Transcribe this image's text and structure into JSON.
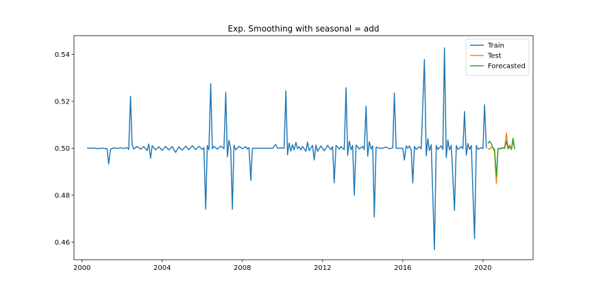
{
  "chart_data": {
    "type": "line",
    "title": "Exp. Smoothing with seasonal = add",
    "xlabel": "",
    "ylabel": "",
    "xlim": [
      1999.6,
      2022.5
    ],
    "ylim": [
      0.4525,
      0.548
    ],
    "x_ticks": [
      2000,
      2004,
      2008,
      2012,
      2016,
      2020
    ],
    "x_tick_labels": [
      "2000",
      "2004",
      "2008",
      "2012",
      "2016",
      "2020"
    ],
    "y_ticks": [
      0.46,
      0.48,
      0.5,
      0.52,
      0.54
    ],
    "y_tick_labels": [
      "0.46",
      "0.48",
      "0.50",
      "0.52",
      "0.54"
    ],
    "grid": false,
    "legend_position": "upper right",
    "series": [
      {
        "name": "Train",
        "color": "#1f77b4",
        "points": [
          [
            2000.25,
            0.5
          ],
          [
            2000.42,
            0.5
          ],
          [
            2000.58,
            0.5001
          ],
          [
            2000.75,
            0.4999
          ],
          [
            2000.92,
            0.5
          ],
          [
            2001.08,
            0.5
          ],
          [
            2001.25,
            0.4998
          ],
          [
            2001.33,
            0.4933
          ],
          [
            2001.42,
            0.4995
          ],
          [
            2001.58,
            0.5002
          ],
          [
            2001.75,
            0.4999
          ],
          [
            2001.92,
            0.5002
          ],
          [
            2002.08,
            0.4999
          ],
          [
            2002.25,
            0.5003
          ],
          [
            2002.33,
            0.4995
          ],
          [
            2002.42,
            0.5222
          ],
          [
            2002.5,
            0.5015
          ],
          [
            2002.58,
            0.4997
          ],
          [
            2002.75,
            0.5008
          ],
          [
            2002.92,
            0.4996
          ],
          [
            2003.08,
            0.5007
          ],
          [
            2003.25,
            0.499
          ],
          [
            2003.33,
            0.5018
          ],
          [
            2003.42,
            0.4958
          ],
          [
            2003.5,
            0.5011
          ],
          [
            2003.67,
            0.4993
          ],
          [
            2003.83,
            0.5006
          ],
          [
            2004.0,
            0.4991
          ],
          [
            2004.17,
            0.5008
          ],
          [
            2004.33,
            0.4993
          ],
          [
            2004.5,
            0.5007
          ],
          [
            2004.67,
            0.4982
          ],
          [
            2004.83,
            0.5006
          ],
          [
            2005.0,
            0.4992
          ],
          [
            2005.17,
            0.5009
          ],
          [
            2005.33,
            0.4994
          ],
          [
            2005.5,
            0.5011
          ],
          [
            2005.67,
            0.4994
          ],
          [
            2005.83,
            0.5008
          ],
          [
            2006.0,
            0.4995
          ],
          [
            2006.08,
            0.5003
          ],
          [
            2006.17,
            0.474
          ],
          [
            2006.25,
            0.5012
          ],
          [
            2006.33,
            0.4993
          ],
          [
            2006.42,
            0.5275
          ],
          [
            2006.5,
            0.4998
          ],
          [
            2006.58,
            0.5008
          ],
          [
            2006.75,
            0.4996
          ],
          [
            2006.92,
            0.5009
          ],
          [
            2007.08,
            0.4998
          ],
          [
            2007.17,
            0.5238
          ],
          [
            2007.25,
            0.4964
          ],
          [
            2007.33,
            0.5034
          ],
          [
            2007.42,
            0.4997
          ],
          [
            2007.5,
            0.474
          ],
          [
            2007.58,
            0.5013
          ],
          [
            2007.67,
            0.4993
          ],
          [
            2007.83,
            0.5008
          ],
          [
            2008.0,
            0.4998
          ],
          [
            2008.17,
            0.5007
          ],
          [
            2008.25,
            0.4996
          ],
          [
            2008.33,
            0.5003
          ],
          [
            2008.42,
            0.4863
          ],
          [
            2008.5,
            0.5
          ],
          [
            2008.67,
            0.5
          ],
          [
            2008.83,
            0.5
          ],
          [
            2009.0,
            0.5
          ],
          [
            2009.25,
            0.5
          ],
          [
            2009.5,
            0.5
          ],
          [
            2009.67,
            0.5016
          ],
          [
            2009.75,
            0.5
          ],
          [
            2009.92,
            0.5002
          ],
          [
            2010.08,
            0.5
          ],
          [
            2010.17,
            0.5245
          ],
          [
            2010.25,
            0.4972
          ],
          [
            2010.33,
            0.5022
          ],
          [
            2010.42,
            0.4988
          ],
          [
            2010.5,
            0.5015
          ],
          [
            2010.58,
            0.4993
          ],
          [
            2010.67,
            0.5025
          ],
          [
            2010.75,
            0.4998
          ],
          [
            2010.83,
            0.5006
          ],
          [
            2010.92,
            0.4993
          ],
          [
            2011.0,
            0.5008
          ],
          [
            2011.17,
            0.4987
          ],
          [
            2011.25,
            0.5026
          ],
          [
            2011.33,
            0.499
          ],
          [
            2011.5,
            0.5012
          ],
          [
            2011.58,
            0.495
          ],
          [
            2011.67,
            0.5014
          ],
          [
            2011.75,
            0.4987
          ],
          [
            2011.92,
            0.501
          ],
          [
            2012.08,
            0.4989
          ],
          [
            2012.25,
            0.5012
          ],
          [
            2012.42,
            0.4994
          ],
          [
            2012.5,
            0.5008
          ],
          [
            2012.58,
            0.4853
          ],
          [
            2012.67,
            0.5012
          ],
          [
            2012.83,
            0.4997
          ],
          [
            2012.92,
            0.5007
          ],
          [
            2013.08,
            0.4994
          ],
          [
            2013.17,
            0.5258
          ],
          [
            2013.25,
            0.497
          ],
          [
            2013.33,
            0.503
          ],
          [
            2013.42,
            0.4993
          ],
          [
            2013.5,
            0.5012
          ],
          [
            2013.58,
            0.48
          ],
          [
            2013.67,
            0.5014
          ],
          [
            2013.83,
            0.4997
          ],
          [
            2014.0,
            0.5008
          ],
          [
            2014.08,
            0.4994
          ],
          [
            2014.17,
            0.518
          ],
          [
            2014.25,
            0.4966
          ],
          [
            2014.33,
            0.5028
          ],
          [
            2014.42,
            0.4996
          ],
          [
            2014.5,
            0.501
          ],
          [
            2014.58,
            0.4707
          ],
          [
            2014.67,
            0.5005
          ],
          [
            2014.83,
            0.5
          ],
          [
            2015.0,
            0.5
          ],
          [
            2015.17,
            0.5005
          ],
          [
            2015.33,
            0.4998
          ],
          [
            2015.5,
            0.5002
          ],
          [
            2015.58,
            0.5235
          ],
          [
            2015.67,
            0.5
          ],
          [
            2015.83,
            0.5
          ],
          [
            2016.0,
            0.5
          ],
          [
            2016.08,
            0.495
          ],
          [
            2016.17,
            0.501
          ],
          [
            2016.25,
            0.5
          ],
          [
            2016.33,
            0.501
          ],
          [
            2016.42,
            0.4993
          ],
          [
            2016.5,
            0.4852
          ],
          [
            2016.58,
            0.5008
          ],
          [
            2016.67,
            0.4995
          ],
          [
            2016.83,
            0.5007
          ],
          [
            2016.92,
            0.4998
          ],
          [
            2017.08,
            0.5378
          ],
          [
            2017.17,
            0.4967
          ],
          [
            2017.25,
            0.504
          ],
          [
            2017.33,
            0.499
          ],
          [
            2017.42,
            0.5015
          ],
          [
            2017.58,
            0.4568
          ],
          [
            2017.67,
            0.5012
          ],
          [
            2017.75,
            0.4995
          ],
          [
            2017.92,
            0.501
          ],
          [
            2018.0,
            0.4995
          ],
          [
            2018.08,
            0.5428
          ],
          [
            2018.17,
            0.496
          ],
          [
            2018.25,
            0.5035
          ],
          [
            2018.33,
            0.4993
          ],
          [
            2018.42,
            0.5012
          ],
          [
            2018.58,
            0.4735
          ],
          [
            2018.67,
            0.5012
          ],
          [
            2018.75,
            0.4995
          ],
          [
            2018.92,
            0.5007
          ],
          [
            2019.0,
            0.4998
          ],
          [
            2019.08,
            0.5157
          ],
          [
            2019.17,
            0.497
          ],
          [
            2019.25,
            0.502
          ],
          [
            2019.33,
            0.4995
          ],
          [
            2019.42,
            0.5012
          ],
          [
            2019.58,
            0.4615
          ],
          [
            2019.67,
            0.5012
          ],
          [
            2019.75,
            0.4995
          ],
          [
            2019.92,
            0.5003
          ],
          [
            2020.0,
            0.4998
          ],
          [
            2020.08,
            0.5185
          ],
          [
            2020.17,
            0.5
          ]
        ]
      },
      {
        "name": "Test",
        "color": "#ff7f0e",
        "points": [
          [
            2020.25,
            0.5
          ],
          [
            2020.33,
            0.4995
          ],
          [
            2020.42,
            0.5005
          ],
          [
            2020.5,
            0.5
          ],
          [
            2020.58,
            0.4985
          ],
          [
            2020.67,
            0.485
          ],
          [
            2020.75,
            0.4995
          ],
          [
            2020.83,
            0.4998
          ],
          [
            2020.92,
            0.5
          ],
          [
            2021.0,
            0.5003
          ],
          [
            2021.08,
            0.4998
          ],
          [
            2021.17,
            0.5065
          ],
          [
            2021.25,
            0.4998
          ],
          [
            2021.33,
            0.5015
          ],
          [
            2021.42,
            0.4995
          ],
          [
            2021.5,
            0.503
          ],
          [
            2021.58,
            0.5
          ]
        ]
      },
      {
        "name": "Forecasted",
        "color": "#2ca02c",
        "points": [
          [
            2020.25,
            0.502
          ],
          [
            2020.33,
            0.503
          ],
          [
            2020.42,
            0.5018
          ],
          [
            2020.5,
            0.5002
          ],
          [
            2020.58,
            0.4995
          ],
          [
            2020.67,
            0.488
          ],
          [
            2020.75,
            0.4998
          ],
          [
            2020.83,
            0.5
          ],
          [
            2020.92,
            0.4998
          ],
          [
            2021.0,
            0.5003
          ],
          [
            2021.08,
            0.5
          ],
          [
            2021.17,
            0.503
          ],
          [
            2021.25,
            0.4997
          ],
          [
            2021.33,
            0.5008
          ],
          [
            2021.42,
            0.4995
          ],
          [
            2021.5,
            0.5043
          ],
          [
            2021.58,
            0.4997
          ]
        ]
      }
    ]
  }
}
